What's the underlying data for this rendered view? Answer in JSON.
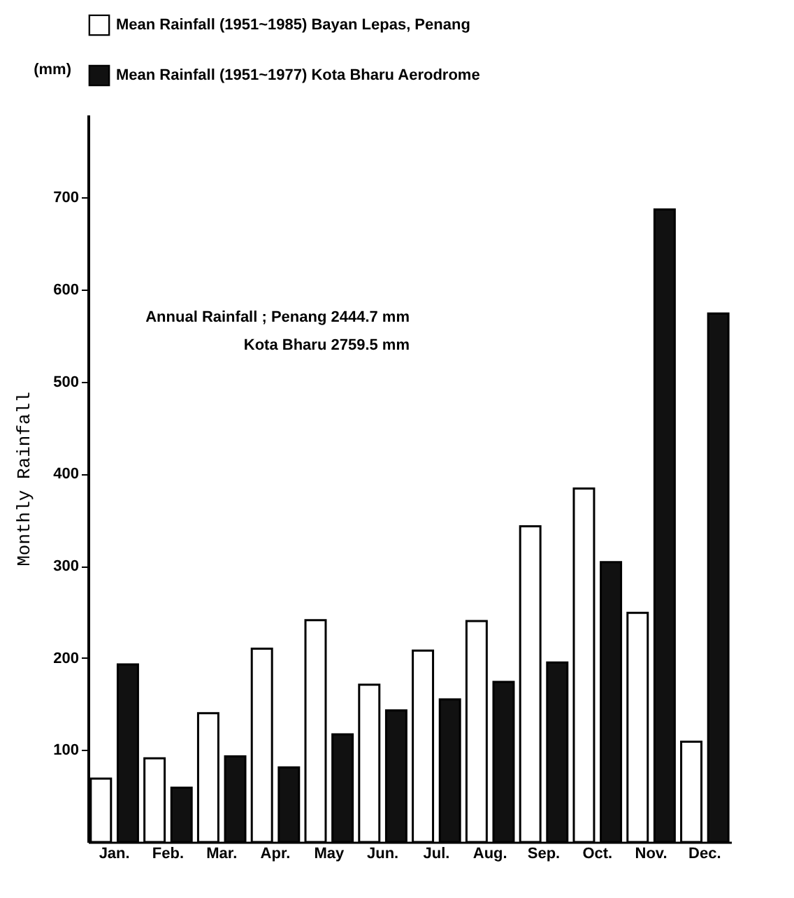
{
  "chart_data": {
    "type": "bar",
    "ylabel": "Monthly Rainfall",
    "categories": [
      "Jan.",
      "Feb.",
      "Mar.",
      "Apr.",
      "May",
      "Jun.",
      "Jul.",
      "Aug.",
      "Sep.",
      "Oct.",
      "Nov.",
      "Dec."
    ],
    "series": [
      {
        "name": "Mean Rainfall (1951~1985) Bayan  Lepas, Penang",
        "color": "#ffffff",
        "values": [
          69,
          91,
          140,
          210,
          241,
          171,
          208,
          240,
          343,
          384,
          249,
          109
        ]
      },
      {
        "name": "Mean Rainfall (1951~1977) Kota Bharu Aerodrome",
        "color": "#111111",
        "values": [
          193,
          59,
          93,
          81,
          117,
          143,
          155,
          174,
          195,
          304,
          687,
          574
        ]
      }
    ],
    "ylim": [
      0,
      790
    ],
    "yticks": [
      100,
      200,
      300,
      400,
      500,
      600,
      700
    ],
    "grid": false,
    "legend": "top",
    "annotations": [
      "(mm)",
      "Annual Rainfall ;  Penang          2444.7 mm",
      "Kota Bharu      2759.5 mm"
    ]
  }
}
